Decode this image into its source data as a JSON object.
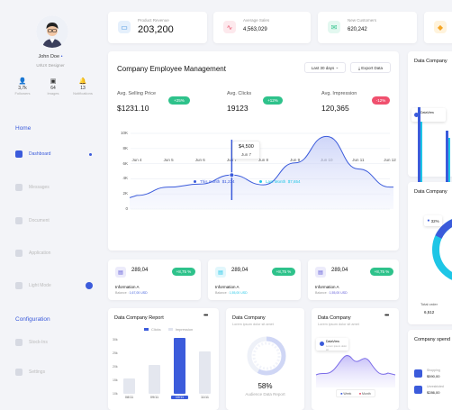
{
  "profile": {
    "name": "John Doe",
    "role": "UI/UX Designer",
    "stats": [
      {
        "icon": "person-icon",
        "value": "3,7k",
        "label": "Followers"
      },
      {
        "icon": "image-icon",
        "value": "64",
        "label": "Images"
      },
      {
        "icon": "bell-icon",
        "value": "13",
        "label": "Notifications"
      }
    ]
  },
  "nav": {
    "home_title": "Home",
    "items": [
      "Dashboard",
      "Messages",
      "Document",
      "Application",
      "Light Mode"
    ],
    "config_title": "Configuration",
    "config_items": [
      "Stock-Ins",
      "Settings"
    ]
  },
  "kpis": [
    {
      "label": "Product Revenue",
      "value": "203,200",
      "color": "#3b8bdb",
      "bg": "#e5f0fc",
      "icon": "monitor-icon"
    },
    {
      "label": "Average Sales",
      "value": "4,563,029",
      "color": "#e8506b",
      "bg": "#fde9ed",
      "icon": "pulse-icon"
    },
    {
      "label": "New Customers",
      "value": "620,242",
      "color": "#2ec28b",
      "bg": "#e3f8f0",
      "icon": "mail-icon"
    }
  ],
  "main": {
    "title": "Company Employee Management",
    "filter": "Last 30 days",
    "export": "Export Data",
    "metrics": [
      {
        "label": "Avg. Selling Price",
        "value": "$1231.10",
        "badge": "+25%",
        "badge_color": "#2ec28b"
      },
      {
        "label": "Avg. Clicks",
        "value": "19123",
        "badge": "+12%",
        "badge_color": "#2ec28b"
      },
      {
        "label": "Avg. Impression",
        "value": "120,365",
        "badge": "-12%",
        "badge_color": "#f0506e"
      }
    ],
    "tooltip_value": "$4,500",
    "tooltip_date": "Jun 7",
    "legend": [
      {
        "label": "This month",
        "value": "$1,234",
        "color": "#3b5bdb"
      },
      {
        "label": "Last Month",
        "value": "$7,654",
        "color": "#1ec6e6"
      }
    ]
  },
  "chart_data": {
    "type": "area",
    "x": [
      "Jun 4",
      "Jun 5",
      "Jun 6",
      "Jun 7",
      "Jun 8",
      "Jun 9",
      "Jun 10",
      "Jun 11",
      "Jun 12"
    ],
    "series": [
      {
        "name": "This month",
        "values": [
          1.8,
          2.9,
          3.3,
          4.5,
          3.2,
          6.1,
          9.6,
          5.3,
          2.9
        ]
      }
    ],
    "yticks": [
      "0",
      "2K",
      "4K",
      "6K",
      "8K",
      "10K"
    ],
    "ylim": [
      0,
      10
    ],
    "grid": true
  },
  "minis": [
    {
      "value": "289,04",
      "pct": "+8,75 %",
      "title": "Information A",
      "sub": "Balance : 1,67,00 USD",
      "color": "#5a55d6",
      "bg": "#ecebfb",
      "icon": "wallet-icon"
    },
    {
      "value": "289,04",
      "pct": "+8,75 %",
      "title": "Information A",
      "sub": "Balance : 1,55,00 USD",
      "color": "#1ec6e6",
      "bg": "#e1f7fc",
      "icon": "wallet-icon"
    },
    {
      "value": "289,04",
      "pct": "+8,75 %",
      "title": "Information A",
      "sub": "Balance : 1,55,00 USD",
      "color": "#5a55d6",
      "bg": "#ecebfb",
      "icon": "wallet-icon"
    }
  ],
  "report": {
    "title": "Data Company Report",
    "legend": [
      "Clicks",
      "Impression"
    ],
    "yticks": [
      "10k",
      "15k",
      "20k",
      "25k",
      "30k"
    ],
    "bars": [
      {
        "label": "08/11",
        "value": 13
      },
      {
        "label": "09/11",
        "value": 18
      },
      {
        "label": "10/11",
        "value": 28
      },
      {
        "label": "11/11",
        "value": 23
      }
    ]
  },
  "donut": {
    "title": "Data Company",
    "subtitle": "Lorem ipsum dolor sit amet",
    "value": "58%",
    "label": "Audience Data Report"
  },
  "area2": {
    "title": "Data Company",
    "subtitle": "Lorem ipsum dolor sit amet",
    "tag": "DataView",
    "tag_sub": "Lorem ipsum dolor sit",
    "legend": [
      "Week",
      "Month"
    ]
  },
  "right": {
    "t1": "Data Company",
    "t2": "Data Company",
    "pct": "32%",
    "total_label": "Total order",
    "total_value": "6,512",
    "t3": "Company spend",
    "tag": "DataView",
    "items": [
      {
        "label": "Shopping",
        "value": "$590,00"
      },
      {
        "label": "Unrestricted",
        "value": "$286,00"
      }
    ]
  }
}
